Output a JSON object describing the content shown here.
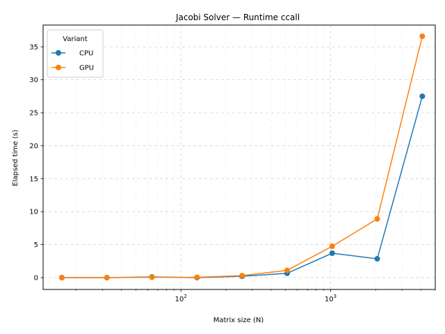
{
  "chart_data": {
    "type": "line",
    "title": "Jacobi Solver — Runtime ccall",
    "xlabel": "Matrix size (N)",
    "ylabel": "Elapsed time (s)",
    "x_scale": "log",
    "xlim": [
      12,
      5000
    ],
    "ylim": [
      -1.8,
      38.3
    ],
    "x": [
      16,
      32,
      64,
      128,
      256,
      512,
      1024,
      2048,
      4096
    ],
    "x_ticks": [
      {
        "value": 100,
        "base": "10",
        "exp": "2"
      },
      {
        "value": 1000,
        "base": "10",
        "exp": "3"
      }
    ],
    "y_ticks": [
      0,
      5,
      10,
      15,
      20,
      25,
      30,
      35
    ],
    "grid": true,
    "legend": {
      "title": "Variant",
      "position": "top-left"
    },
    "series": [
      {
        "name": "CPU",
        "color": "#1f77b4",
        "values": [
          0.0,
          0.0,
          0.1,
          0.0,
          0.2,
          0.65,
          3.7,
          2.85,
          27.5
        ]
      },
      {
        "name": "GPU",
        "color": "#ff7f0e",
        "values": [
          0.0,
          0.0,
          0.05,
          0.05,
          0.3,
          1.1,
          4.75,
          8.9,
          36.6
        ]
      }
    ]
  }
}
